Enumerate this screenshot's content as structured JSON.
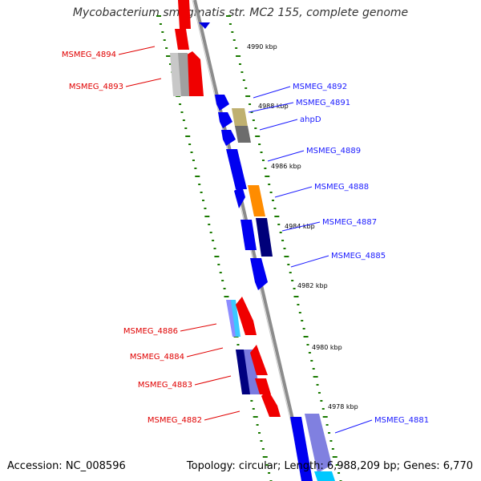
{
  "title": "Mycobacterium smegmatis str. MC2 155, complete genome",
  "footer": {
    "accession": "Accession: NC_008596",
    "summary": "Topology: circular; Length: 6,988,209 bp; Genes: 6,770"
  },
  "colors": {
    "backbone": "#8c8c8c",
    "forward_label": "#1a1aff",
    "reverse_label": "#e00000",
    "tick_dot": "#1a7a00"
  },
  "ticks": [
    {
      "label": "4990 kbp"
    },
    {
      "label": "4988 kbp"
    },
    {
      "label": "4986 kbp"
    },
    {
      "label": "4984 kbp"
    },
    {
      "label": "4982 kbp"
    },
    {
      "label": "4980 kbp"
    },
    {
      "label": "4978 kbp"
    }
  ],
  "genes_forward": [
    {
      "name": "MSMEG_4892"
    },
    {
      "name": "MSMEG_4891"
    },
    {
      "name": "ahpD"
    },
    {
      "name": "MSMEG_4889"
    },
    {
      "name": "MSMEG_4888"
    },
    {
      "name": "MSMEG_4887"
    },
    {
      "name": "MSMEG_4885"
    },
    {
      "name": "MSMEG_4881"
    }
  ],
  "genes_reverse": [
    {
      "name": "MSMEG_4894"
    },
    {
      "name": "MSMEG_4893"
    },
    {
      "name": "MSMEG_4886"
    },
    {
      "name": "MSMEG_4884"
    },
    {
      "name": "MSMEG_4883"
    },
    {
      "name": "MSMEG_4882"
    }
  ]
}
